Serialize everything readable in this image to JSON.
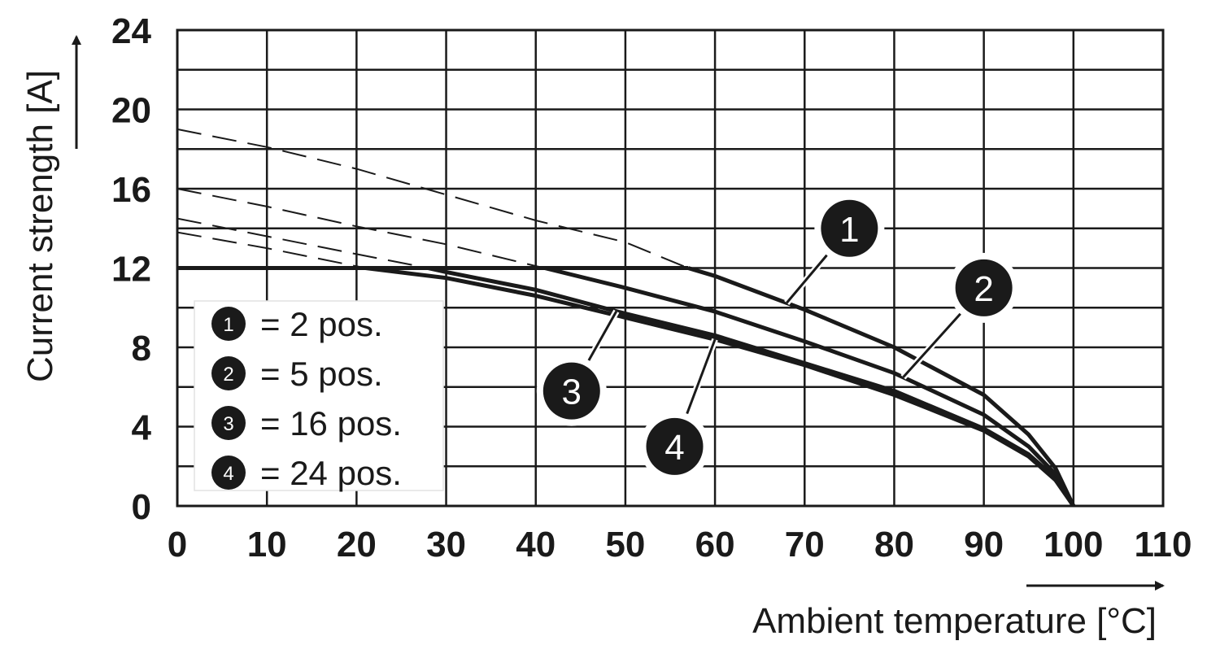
{
  "chart_data": {
    "type": "line",
    "xlabel": "Ambient temperature [°C]",
    "ylabel": "Current strength [A]",
    "xlim": [
      0,
      110
    ],
    "ylim": [
      0,
      24
    ],
    "x_ticks": [
      0,
      10,
      20,
      30,
      40,
      50,
      60,
      70,
      80,
      90,
      100,
      110
    ],
    "y_ticks": [
      0,
      4,
      8,
      12,
      16,
      20,
      24
    ],
    "x_tick_labels": [
      "0",
      "10",
      "20",
      "30",
      "40",
      "50",
      "60",
      "70",
      "80",
      "90",
      "100",
      "110"
    ],
    "y_tick_labels": [
      "0",
      "4",
      "8",
      "12",
      "16",
      "20",
      "24"
    ],
    "grid": true,
    "grid_x_step": 10,
    "grid_y_step": 2,
    "current_limit": 12,
    "legend_position": "left",
    "series": [
      {
        "id": "1",
        "label": "= 2 pos.",
        "points": [
          [
            0,
            19.0
          ],
          [
            10,
            18.1
          ],
          [
            20,
            17.0
          ],
          [
            30,
            15.7
          ],
          [
            40,
            14.4
          ],
          [
            50,
            13.3
          ],
          [
            57,
            12.0
          ],
          [
            60,
            11.6
          ],
          [
            70,
            9.9
          ],
          [
            80,
            8.0
          ],
          [
            90,
            5.6
          ],
          [
            95,
            3.6
          ],
          [
            98,
            1.9
          ],
          [
            100,
            0
          ]
        ],
        "label_point": [
          75,
          14.0
        ]
      },
      {
        "id": "2",
        "label": "= 5 pos.",
        "points": [
          [
            0,
            16.0
          ],
          [
            10,
            15.1
          ],
          [
            20,
            14.1
          ],
          [
            30,
            13.2
          ],
          [
            40,
            12.1
          ],
          [
            41,
            12.0
          ],
          [
            50,
            11.0
          ],
          [
            60,
            9.8
          ],
          [
            70,
            8.3
          ],
          [
            80,
            6.7
          ],
          [
            90,
            4.6
          ],
          [
            95,
            3.0
          ],
          [
            98,
            1.6
          ],
          [
            100,
            0
          ]
        ],
        "label_point": [
          90,
          11.0
        ]
      },
      {
        "id": "3",
        "label": "= 16 pos.",
        "points": [
          [
            0,
            14.5
          ],
          [
            10,
            13.6
          ],
          [
            20,
            12.7
          ],
          [
            28,
            12.0
          ],
          [
            30,
            11.8
          ],
          [
            40,
            10.9
          ],
          [
            50,
            9.7
          ],
          [
            60,
            8.6
          ],
          [
            70,
            7.2
          ],
          [
            80,
            5.8
          ],
          [
            90,
            3.9
          ],
          [
            95,
            2.6
          ],
          [
            98,
            1.4
          ],
          [
            100,
            0
          ]
        ],
        "label_point": [
          44,
          5.8
        ]
      },
      {
        "id": "4",
        "label": "= 24 pos.",
        "points": [
          [
            0,
            13.8
          ],
          [
            10,
            13.0
          ],
          [
            21,
            12.0
          ],
          [
            30,
            11.5
          ],
          [
            40,
            10.6
          ],
          [
            50,
            9.5
          ],
          [
            60,
            8.4
          ],
          [
            70,
            7.1
          ],
          [
            80,
            5.6
          ],
          [
            90,
            3.8
          ],
          [
            95,
            2.5
          ],
          [
            98,
            1.3
          ],
          [
            100,
            0
          ]
        ],
        "label_point": [
          55.5,
          3.0
        ]
      }
    ]
  }
}
